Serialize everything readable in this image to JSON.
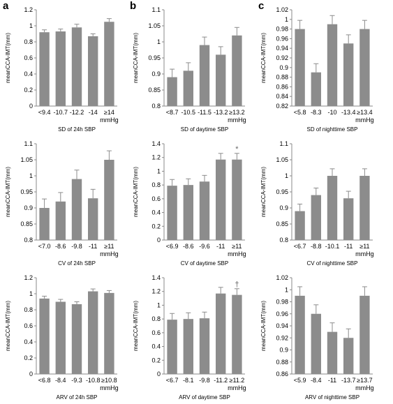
{
  "panel_letters": [
    "a",
    "b",
    "c"
  ],
  "style": {
    "bar_color": "#8c8c8c",
    "axis_color": "#888888",
    "text_color": "#000000"
  },
  "chart_data": [
    {
      "type": "bar",
      "panel": "a",
      "categories": [
        "<9.4",
        "-10.7",
        "-12.2",
        "-14",
        "≥14"
      ],
      "unit": "mmHg",
      "values": [
        0.92,
        0.93,
        0.98,
        0.87,
        1.05
      ],
      "errors": [
        0.03,
        0.03,
        0.04,
        0.03,
        0.04
      ],
      "xlabel": "SD of 24h SBP",
      "ylabel": "meanCCA-IMT(mm)",
      "ylim": [
        0,
        1.2
      ],
      "yticks": [
        "0",
        "0.2",
        "0.4",
        "0.6",
        "0.8",
        "1",
        "1.2"
      ],
      "annotations": [
        "",
        "",
        "",
        "",
        ""
      ]
    },
    {
      "type": "bar",
      "panel": "b",
      "categories": [
        "<8.7",
        "-10.5",
        "-11.5",
        "-13.2",
        "≥13.2"
      ],
      "unit": "mmHg",
      "values": [
        0.89,
        0.91,
        0.99,
        0.96,
        1.02
      ],
      "errors": [
        0.025,
        0.025,
        0.025,
        0.025,
        0.025
      ],
      "xlabel": "SD of daytime SBP",
      "ylabel": "meanCCA-IMT(mm)",
      "ylim": [
        0.8,
        1.1
      ],
      "yticks": [
        "0.8",
        "0.85",
        "0.9",
        "0.95",
        "1",
        "1.05",
        "1.1"
      ],
      "annotations": [
        "",
        "",
        "",
        "",
        ""
      ]
    },
    {
      "type": "bar",
      "panel": "c",
      "categories": [
        "<5.8",
        "-8.3",
        "-10",
        "-13.4",
        "≥13.4"
      ],
      "unit": "mmHg",
      "values": [
        0.98,
        0.89,
        0.99,
        0.95,
        0.98
      ],
      "errors": [
        0.018,
        0.018,
        0.018,
        0.018,
        0.018
      ],
      "xlabel": "SD of nighttime SBP",
      "ylabel": "meanCCA-IMT(mm)",
      "ylim": [
        0.82,
        1.02
      ],
      "yticks": [
        "0.82",
        "0.84",
        "0.86",
        "0.88",
        "0.9",
        "0.92",
        "0.94",
        "0.96",
        "0.98",
        "1",
        "1.02"
      ],
      "annotations": [
        "",
        "",
        "",
        "",
        ""
      ]
    },
    {
      "type": "bar",
      "panel": "a",
      "categories": [
        "<7.0",
        "-8.6",
        "-9.8",
        "-11",
        "≥11"
      ],
      "unit": "mmHg",
      "values": [
        0.9,
        0.92,
        0.99,
        0.93,
        1.05
      ],
      "errors": [
        0.028,
        0.028,
        0.028,
        0.028,
        0.028
      ],
      "xlabel": "CV of 24h SBP",
      "ylabel": "meanCCA-IMT(mm)",
      "ylim": [
        0.8,
        1.1
      ],
      "yticks": [
        "0.8",
        "0.85",
        "0.9",
        "0.95",
        "1",
        "1.05",
        "1.1"
      ],
      "annotations": [
        "",
        "",
        "",
        "",
        ""
      ]
    },
    {
      "type": "bar",
      "panel": "b",
      "categories": [
        "<6.9",
        "-8.6",
        "-9.6",
        "-11",
        "≥11"
      ],
      "unit": "mmHg",
      "values": [
        0.79,
        0.8,
        0.85,
        1.17,
        1.17
      ],
      "errors": [
        0.09,
        0.09,
        0.09,
        0.09,
        0.09
      ],
      "xlabel": "CV of daytime SBP",
      "ylabel": "meanCCA-IMT(mm)",
      "ylim": [
        0,
        1.4
      ],
      "yticks": [
        "0",
        "0.2",
        "0.4",
        "0.6",
        "0.8",
        "1",
        "1.2",
        "1.4"
      ],
      "annotations": [
        "",
        "",
        "",
        "",
        "*"
      ]
    },
    {
      "type": "bar",
      "panel": "c",
      "categories": [
        "<6.7",
        "-8.8",
        "-10.1",
        "-11",
        "≥11"
      ],
      "unit": "mmHg",
      "values": [
        0.89,
        0.94,
        1.0,
        0.93,
        1.0
      ],
      "errors": [
        0.022,
        0.022,
        0.022,
        0.022,
        0.022
      ],
      "xlabel": "CV of nighttime SBP",
      "ylabel": "meanCCA-IMT(mm)",
      "ylim": [
        0.8,
        1.1
      ],
      "yticks": [
        "0.8",
        "0.85",
        "0.9",
        "0.95",
        "1",
        "1.05",
        "1.1"
      ],
      "annotations": [
        "",
        "",
        "",
        "",
        ""
      ]
    },
    {
      "type": "bar",
      "panel": "a",
      "categories": [
        "<6.8",
        "-8.4",
        "-9.3",
        "-10.8",
        "≥10.8"
      ],
      "unit": "mmHg",
      "values": [
        0.94,
        0.9,
        0.87,
        1.03,
        1.01
      ],
      "errors": [
        0.03,
        0.03,
        0.03,
        0.03,
        0.03
      ],
      "xlabel": "ARV of 24h SBP",
      "ylabel": "meanCCA-IMT(mm)",
      "ylim": [
        0,
        1.2
      ],
      "yticks": [
        "0",
        "0.2",
        "0.4",
        "0.6",
        "0.8",
        "1",
        "1.2"
      ],
      "annotations": [
        "",
        "",
        "",
        "",
        ""
      ]
    },
    {
      "type": "bar",
      "panel": "b",
      "categories": [
        "<6.7",
        "-8.1",
        "-9.8",
        "-11.2",
        "≥11.2"
      ],
      "unit": "mmHg",
      "values": [
        0.79,
        0.8,
        0.81,
        1.17,
        1.15
      ],
      "errors": [
        0.09,
        0.09,
        0.09,
        0.09,
        0.09
      ],
      "xlabel": "ARV of daytime SBP",
      "ylabel": "meanCCA-IMT(mm)",
      "ylim": [
        0,
        1.4
      ],
      "yticks": [
        "0",
        "0.2",
        "0.4",
        "0.6",
        "0.8",
        "1",
        "1.2",
        "1.4"
      ],
      "annotations": [
        "",
        "",
        "",
        "",
        "†"
      ]
    },
    {
      "type": "bar",
      "panel": "c",
      "categories": [
        "<5.9",
        "-8.4",
        "-11",
        "-13.7",
        "≥13.7"
      ],
      "unit": "mmHg",
      "values": [
        0.99,
        0.96,
        0.93,
        0.92,
        0.99
      ],
      "errors": [
        0.015,
        0.015,
        0.015,
        0.015,
        0.015
      ],
      "xlabel": "ARV of nighttime SBP",
      "ylabel": "meanCCA-IMT(mm)",
      "ylim": [
        0.86,
        1.02
      ],
      "yticks": [
        "0.86",
        "0.88",
        "0.9",
        "0.92",
        "0.94",
        "0.96",
        "0.98",
        "1",
        "1.02"
      ],
      "annotations": [
        "",
        "",
        "",
        "",
        ""
      ]
    }
  ]
}
